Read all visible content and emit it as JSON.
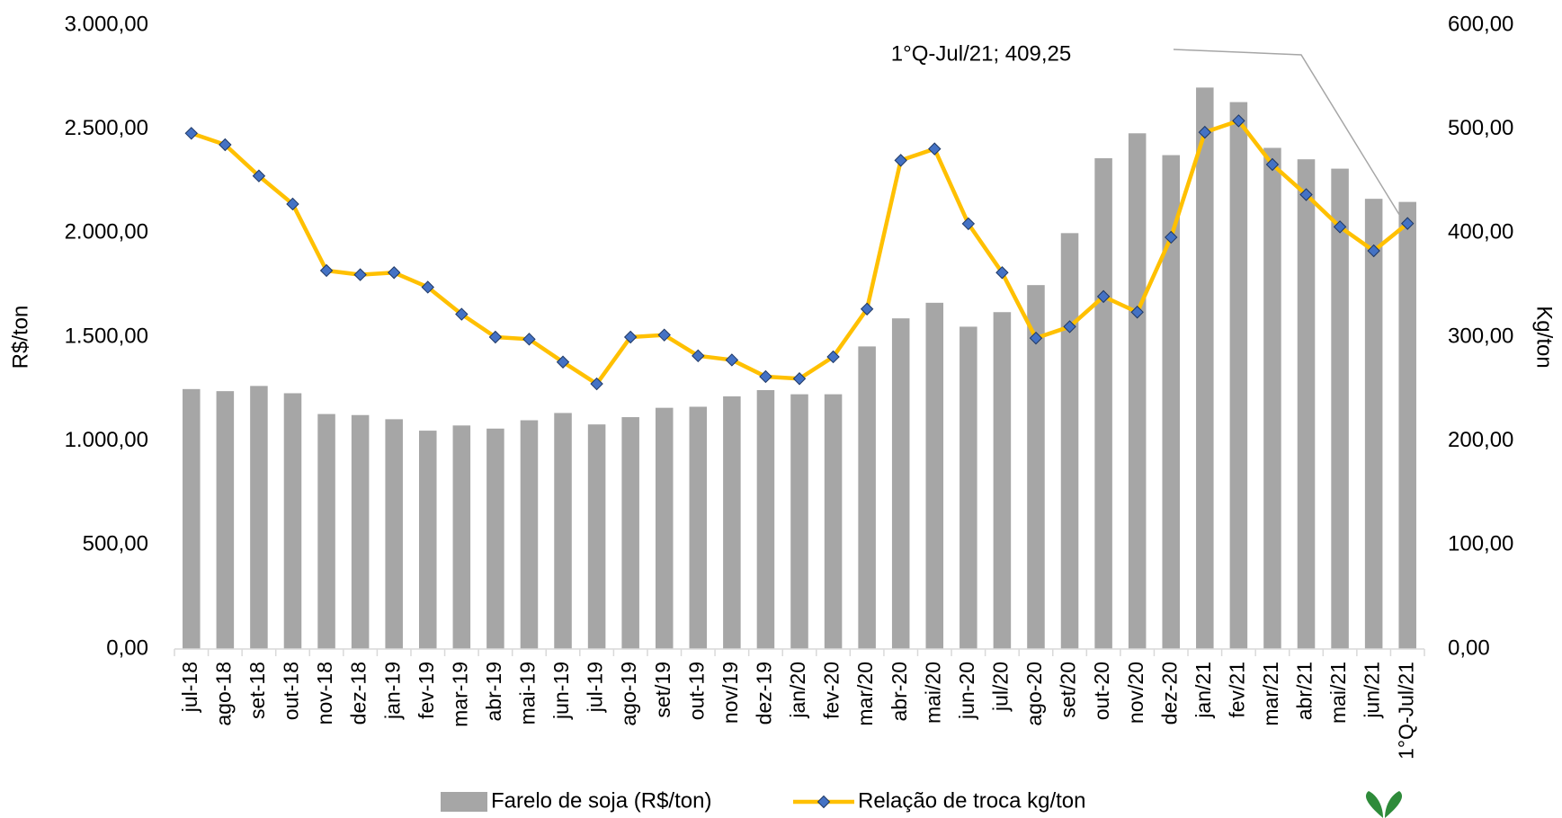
{
  "chart_data": {
    "type": "bar-line",
    "categories": [
      "jul-18",
      "ago-18",
      "set-18",
      "out-18",
      "nov-18",
      "dez-18",
      "jan-19",
      "fev-19",
      "mar-19",
      "abr-19",
      "mai-19",
      "jun-19",
      "jul-19",
      "ago-19",
      "set/19",
      "out-19",
      "nov/19",
      "dez-19",
      "jan/20",
      "fev-20",
      "mar/20",
      "abr-20",
      "mai/20",
      "jun-20",
      "jul/20",
      "ago-20",
      "set/20",
      "out-20",
      "nov/20",
      "dez-20",
      "jan/21",
      "fev/21",
      "mar/21",
      "abr/21",
      "mai/21",
      "jun/21",
      "1°Q-Jul/21"
    ],
    "series": [
      {
        "name": "Farelo de soja (R$/ton)",
        "type": "bar",
        "color": "#a6a6a6",
        "axis": "y",
        "values": [
          1250,
          1240,
          1265,
          1230,
          1130,
          1125,
          1105,
          1050,
          1075,
          1060,
          1100,
          1135,
          1080,
          1115,
          1160,
          1165,
          1215,
          1245,
          1225,
          1225,
          1455,
          1590,
          1665,
          1550,
          1620,
          1750,
          2000,
          2360,
          2480,
          2375,
          2700,
          2630,
          2410,
          2355,
          2310,
          2165,
          2150
        ]
      },
      {
        "name": "Relação de troca kg/ton",
        "type": "line",
        "color": "#ffc000",
        "marker_color": "#4472c4",
        "axis": "y2",
        "values": [
          496,
          485,
          455,
          428,
          364,
          360,
          362,
          348,
          322,
          300,
          298,
          276,
          255,
          300,
          302,
          282,
          278,
          262,
          260,
          281,
          327,
          470,
          481,
          409,
          362,
          299,
          310,
          339,
          324,
          396,
          497,
          508,
          466,
          437,
          406,
          383,
          409.25
        ]
      }
    ],
    "annotation": "1°Q-Jul/21; 409,25",
    "ylabel": "R$/ton",
    "y2label": "Kg/ton",
    "ylim": [
      0,
      3000
    ],
    "yticks": [
      {
        "value": 0,
        "label": "0,00"
      },
      {
        "value": 500,
        "label": "500,00"
      },
      {
        "value": 1000,
        "label": "1.000,00"
      },
      {
        "value": 1500,
        "label": "1.500,00"
      },
      {
        "value": 2000,
        "label": "2.000,00"
      },
      {
        "value": 2500,
        "label": "2.500,00"
      },
      {
        "value": 3000,
        "label": "3.000,00"
      }
    ],
    "y2lim": [
      0,
      600
    ],
    "y2ticks": [
      {
        "value": 0,
        "label": "0,00"
      },
      {
        "value": 100,
        "label": "100,00"
      },
      {
        "value": 200,
        "label": "200,00"
      },
      {
        "value": 300,
        "label": "300,00"
      },
      {
        "value": 400,
        "label": "400,00"
      },
      {
        "value": 500,
        "label": "500,00"
      },
      {
        "value": 600,
        "label": "600,00"
      }
    ],
    "grid": false,
    "legend": "bottom"
  }
}
